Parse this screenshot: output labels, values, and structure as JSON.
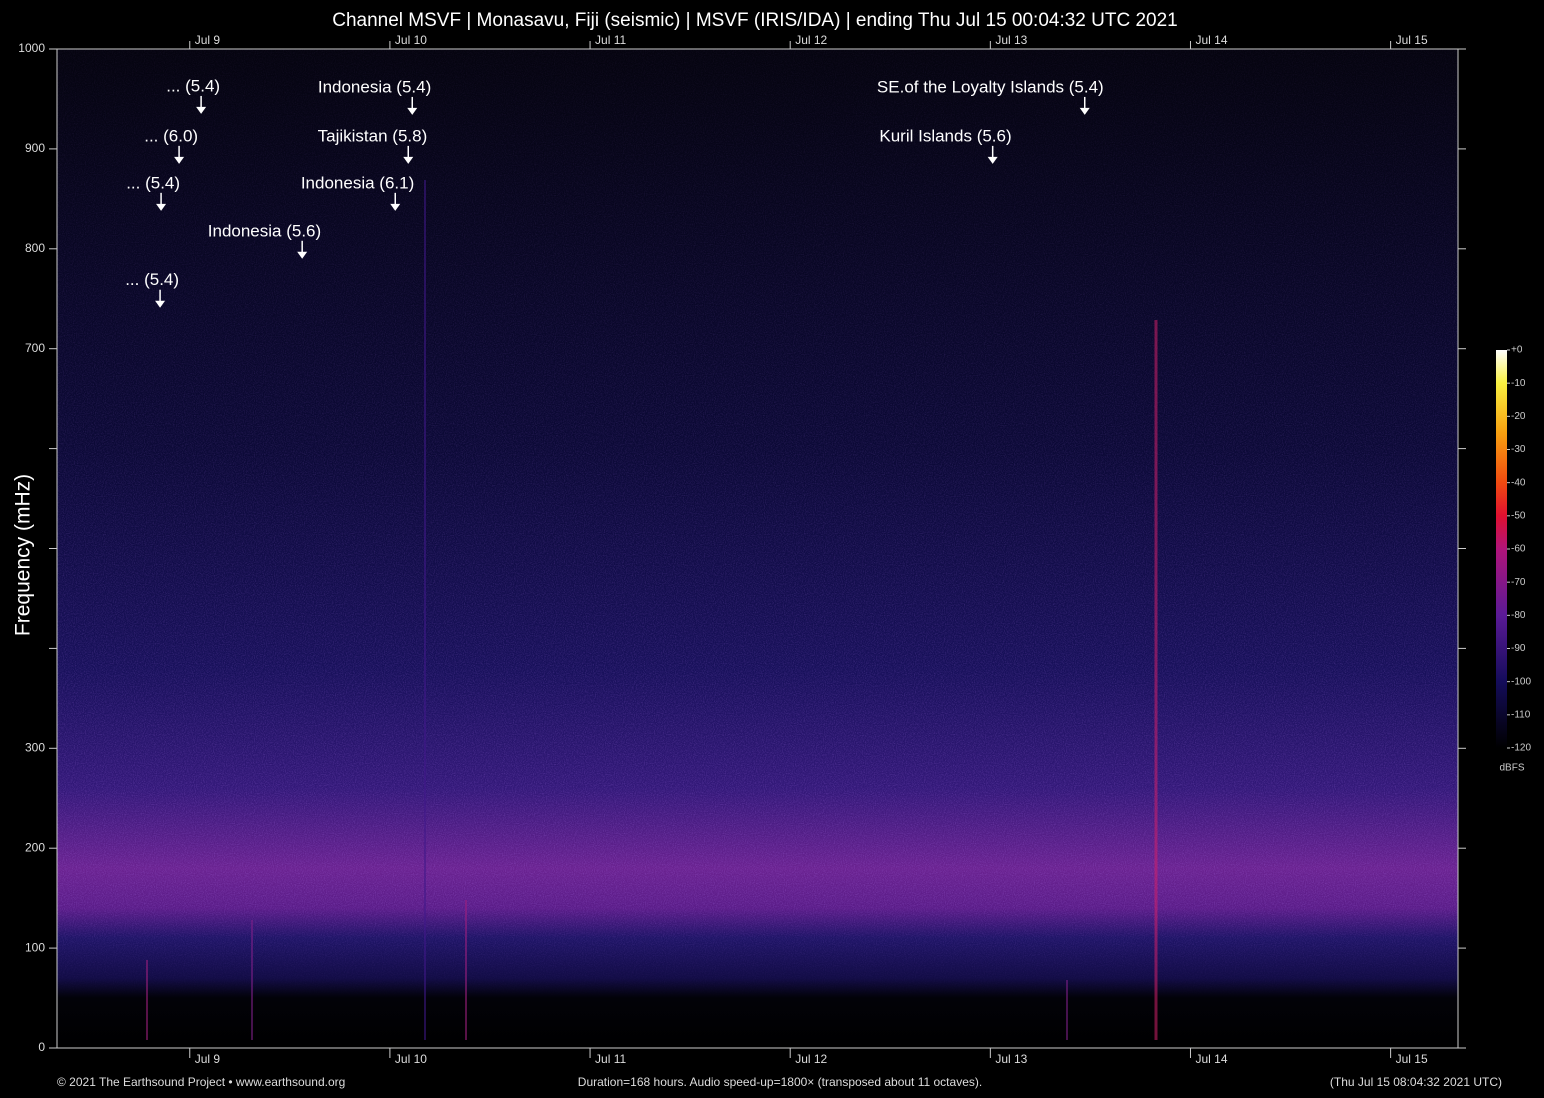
{
  "chart_data": {
    "type": "spectrogram",
    "title": "Channel MSVF | Monasavu, Fiji (seismic) | MSVF (IRIS/IDA) | ending Thu Jul 15 00:04:32 UTC 2021",
    "ylabel": "Frequency (mHz)",
    "xlim": [
      0,
      168
    ],
    "xticks": [
      {
        "value": 15.92,
        "label": "Jul  9"
      },
      {
        "value": 39.92,
        "label": "Jul 10"
      },
      {
        "value": 63.92,
        "label": "Jul 11"
      },
      {
        "value": 87.92,
        "label": "Jul 12"
      },
      {
        "value": 111.92,
        "label": "Jul 13"
      },
      {
        "value": 135.92,
        "label": "Jul 14"
      },
      {
        "value": 159.92,
        "label": "Jul 15"
      }
    ],
    "ylim": [
      0,
      1000
    ],
    "yticks": [
      0,
      100,
      200,
      300,
      {
        "value": 400,
        "label": null
      },
      {
        "value": 500,
        "label": null
      },
      {
        "value": 600,
        "label": null
      },
      700,
      800,
      900,
      1000
    ],
    "annotations": [
      {
        "text": "... (5.4)",
        "x": 17.28,
        "y": 935
      },
      {
        "text": "... (6.0)",
        "x": 14.64,
        "y": 885
      },
      {
        "text": "... (5.4)",
        "x": 12.48,
        "y": 838
      },
      {
        "text": "Indonesia (5.6)",
        "x": 29.4,
        "y": 790
      },
      {
        "text": "... (5.4)",
        "x": 12.36,
        "y": 741
      },
      {
        "text": "Indonesia (5.4)",
        "x": 42.6,
        "y": 934
      },
      {
        "text": "Tajikistan (5.8)",
        "x": 42.12,
        "y": 885
      },
      {
        "text": "Indonesia (6.1)",
        "x": 40.56,
        "y": 838
      },
      {
        "text": "SE.of the Loyalty Islands (5.4)",
        "x": 123.24,
        "y": 934
      },
      {
        "text": "Kuril Islands (5.6)",
        "x": 112.2,
        "y": 885
      }
    ],
    "colorbar": {
      "label": "dBFS",
      "lim": [
        -120,
        0
      ],
      "ticks": [
        {
          "value": 0,
          "label": "+0"
        },
        -10,
        -20,
        -30,
        -40,
        -50,
        -60,
        -70,
        -80,
        -90,
        -100,
        -110,
        -120
      ],
      "colorscale": [
        [
          -120,
          "#000000"
        ],
        [
          -100,
          "#140c5a"
        ],
        [
          -80,
          "#5a1a96"
        ],
        [
          -60,
          "#b0147a"
        ],
        [
          -50,
          "#e01030"
        ],
        [
          -40,
          "#f04a10"
        ],
        [
          -25,
          "#f8a010"
        ],
        [
          -10,
          "#f8f040"
        ],
        [
          0,
          "#ffffff"
        ]
      ]
    },
    "footer_left": "© 2021 The Earthsound Project • www.earthsound.org",
    "footer_center": "Duration=168 hours. Audio speed-up=1800× (transposed about 11 octaves).",
    "footer_right": "(Thu Jul 15 08:04:32 2021 UTC)"
  }
}
